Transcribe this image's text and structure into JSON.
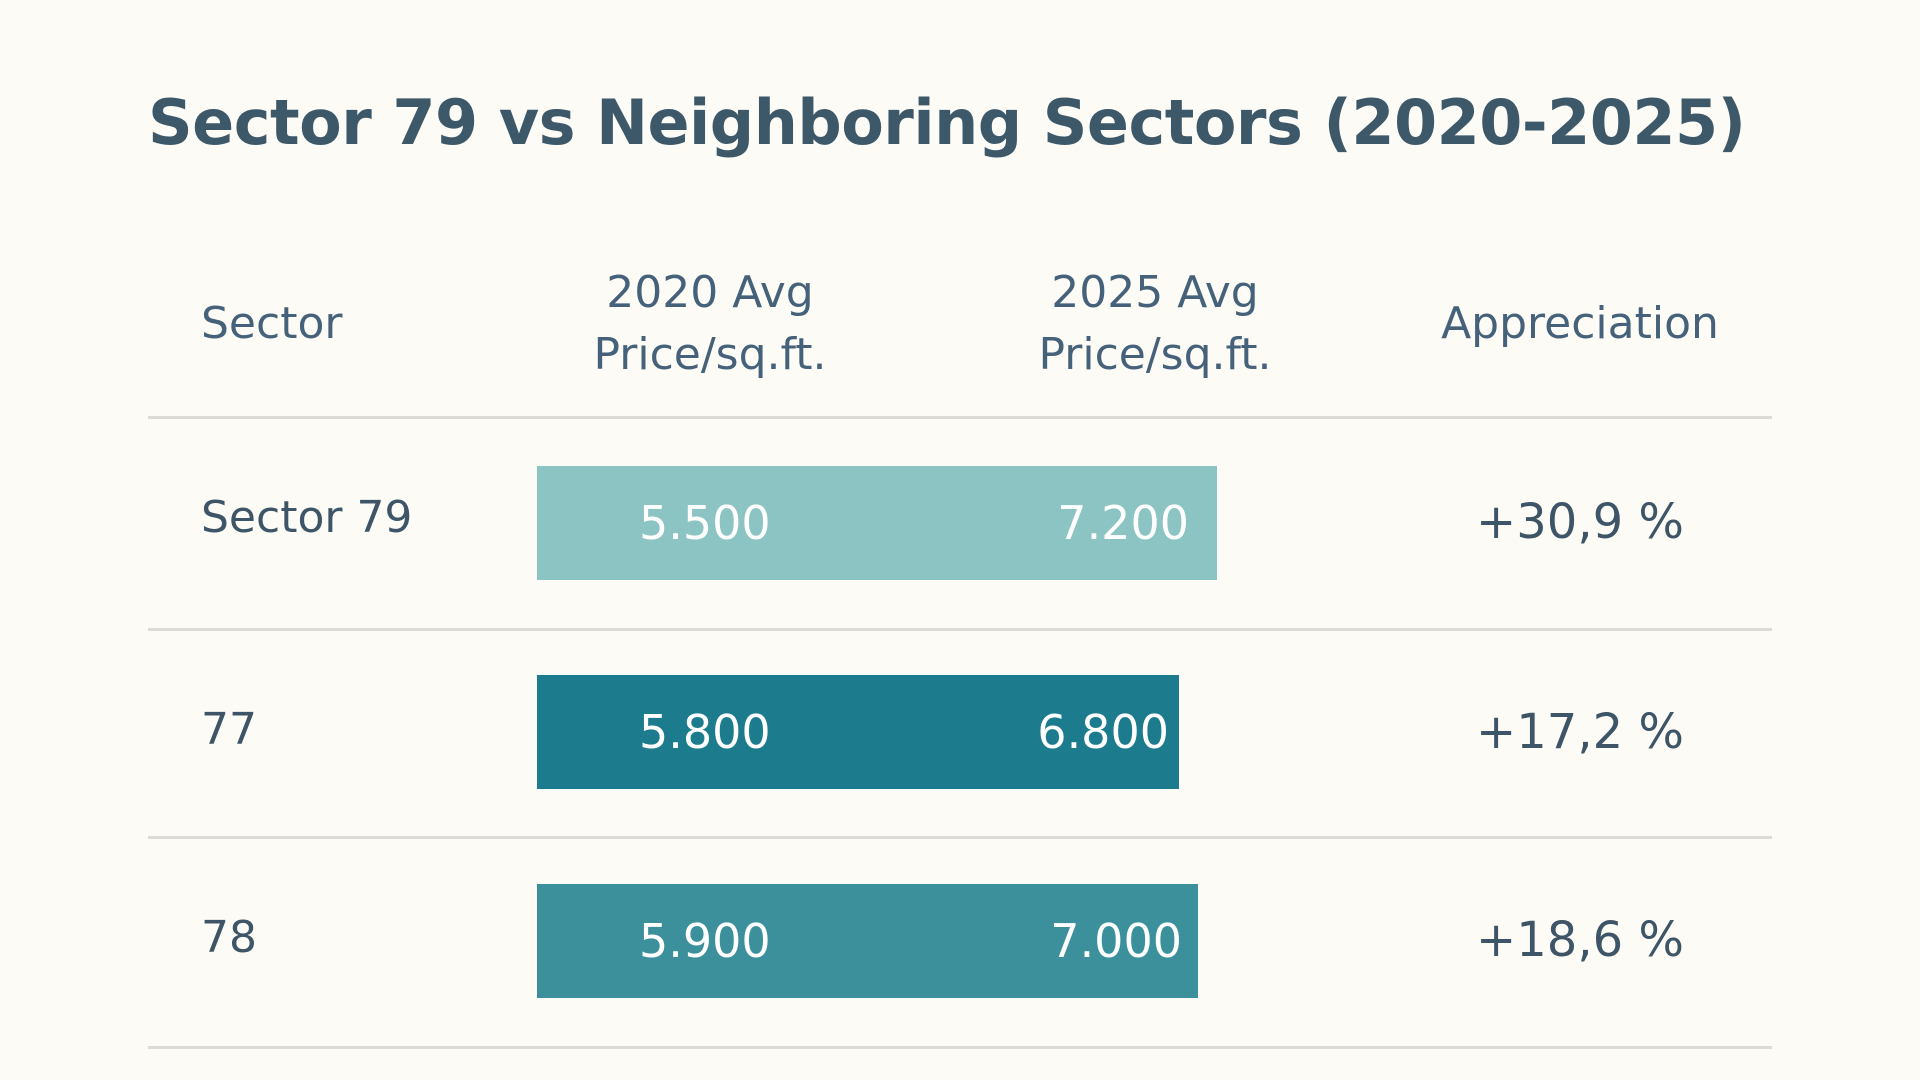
{
  "chart_data": {
    "type": "table",
    "title": "Sector 79 vs Neighboring Sectors (2020-2025)",
    "columns": [
      [
        "Sector"
      ],
      [
        "2020 Avg",
        "Price/sq.ft."
      ],
      [
        "2025 Avg",
        "Price/sq.ft."
      ],
      [
        "Appreciation"
      ]
    ],
    "rows": [
      {
        "sector": "Sector 79",
        "v2020": 5500,
        "v2020_label": "5.500",
        "v2025": 7200,
        "v2025_label": "7.200",
        "appreciation": "+30,9 %",
        "color": "#8bc4c2"
      },
      {
        "sector": "77",
        "v2020": 5800,
        "v2020_label": "5.800",
        "v2025": 6800,
        "v2025_label": "6.800",
        "appreciation": "+17,2 %",
        "color": "#1c7b8c"
      },
      {
        "sector": "78",
        "v2020": 5900,
        "v2020_label": "5.900",
        "v2025": 7000,
        "v2025_label": "7.000",
        "appreciation": "+18,6 %",
        "color": "#3b909c"
      }
    ]
  }
}
